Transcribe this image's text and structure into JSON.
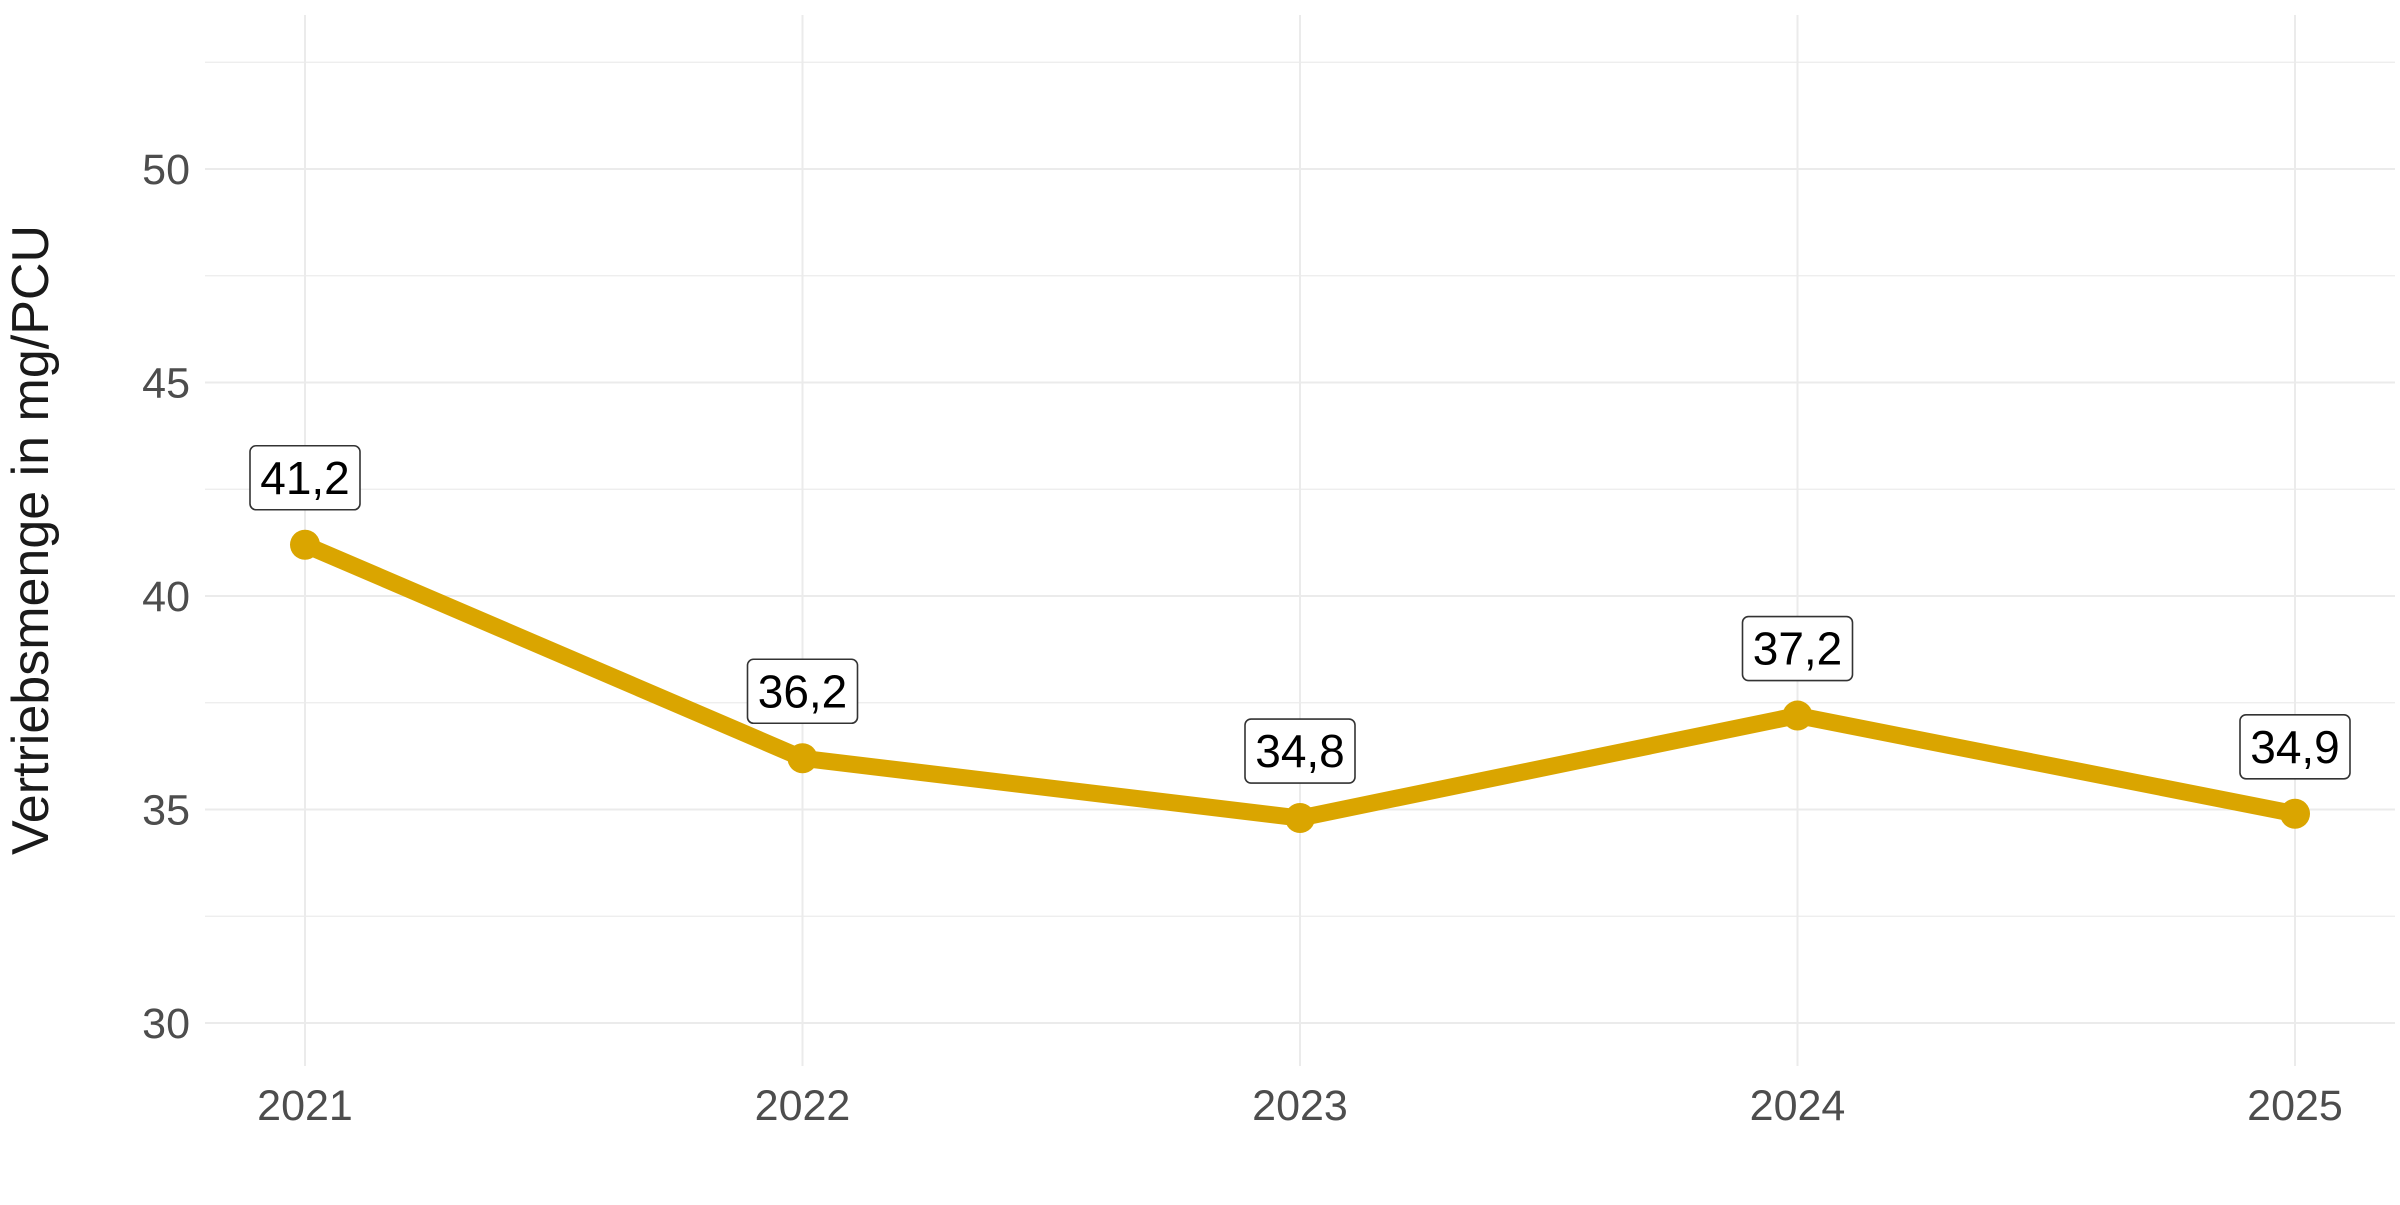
{
  "chart_data": {
    "type": "line",
    "title": "",
    "xlabel": "",
    "ylabel": "Vertriebsmenge in mg/PCU",
    "categories": [
      "2021",
      "2022",
      "2023",
      "2024",
      "2025"
    ],
    "series": [
      {
        "values": [
          41.2,
          36.2,
          34.8,
          37.2,
          34.9
        ],
        "data_labels": [
          "41,2",
          "36,2",
          "34,8",
          "37,2",
          "34,9"
        ],
        "color": "#DAA500"
      }
    ],
    "ylim": [
      29.5,
      52.5
    ],
    "y_ticks": [
      30,
      35,
      40,
      45,
      50
    ],
    "y_tick_labels": [
      "30",
      "35",
      "40",
      "45",
      "50"
    ],
    "grid": true,
    "legend": "none"
  }
}
